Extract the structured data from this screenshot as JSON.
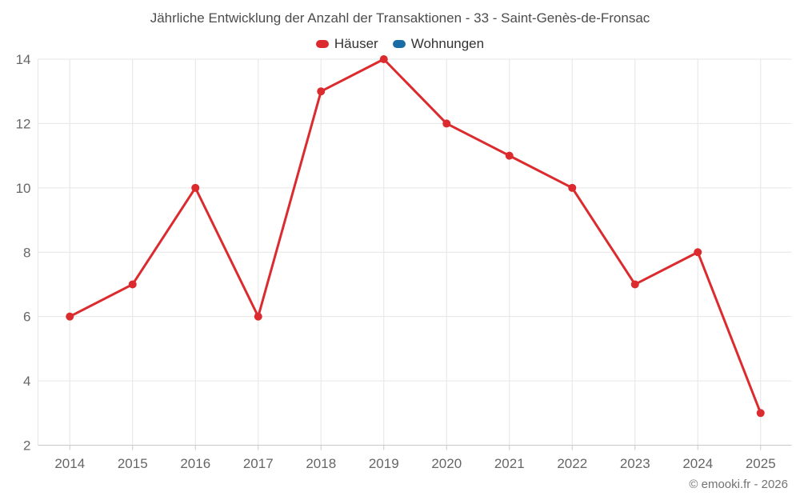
{
  "chart_data": {
    "type": "line",
    "title": "Jährliche Entwicklung der Anzahl der Transaktionen - 33 - Saint-Genès-de-Fronsac",
    "categories": [
      "2014",
      "2015",
      "2016",
      "2017",
      "2018",
      "2019",
      "2020",
      "2021",
      "2022",
      "2023",
      "2024",
      "2025"
    ],
    "series": [
      {
        "name": "Häuser",
        "color": "#db2b2e",
        "values": [
          6,
          7,
          10,
          6,
          13,
          14,
          12,
          11,
          10,
          7,
          8,
          3
        ],
        "visible": true
      },
      {
        "name": "Wohnungen",
        "color": "#1a6ca5",
        "values": [],
        "visible": false
      }
    ],
    "xlabel": "",
    "ylabel": "",
    "ylim": [
      2,
      14
    ],
    "y_ticks": [
      2,
      4,
      6,
      8,
      10,
      12,
      14
    ],
    "grid": true,
    "legend_position": "top-center",
    "marker": "circle"
  },
  "credit": "© emooki.fr - 2026"
}
